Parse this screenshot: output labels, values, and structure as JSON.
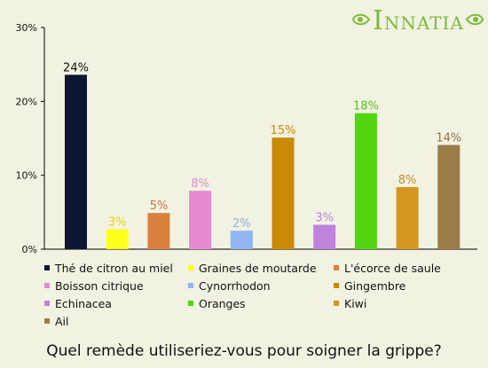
{
  "logo": {
    "text": "INNATIA",
    "color": "#7dbb3a"
  },
  "caption": "Quel remède utiliseriez-vous pour soigner la grippe?",
  "chart_data": {
    "type": "bar",
    "title": "Quel remède utiliseriez-vous pour soigner la grippe?",
    "ylim": [
      0,
      30
    ],
    "yticks": [
      0,
      10,
      20,
      30
    ],
    "ytick_labels": [
      "0%",
      "10%",
      "20%",
      "30%"
    ],
    "grid": false,
    "legend_position": "bottom",
    "categories": [
      "Thé de citron au miel",
      "Graines de moutarde",
      "L'écorce de saule",
      "Boisson citrique",
      "Cynorrhodon",
      "Gingembre",
      "Echinacea",
      "Oranges",
      "Kiwi",
      "Ail"
    ],
    "values": [
      24,
      3,
      5,
      8,
      2,
      15,
      3,
      18,
      8,
      14
    ],
    "plotted_values": [
      23.6,
      2.7,
      4.9,
      7.9,
      2.5,
      15.1,
      3.3,
      18.4,
      8.4,
      14.1
    ],
    "value_labels": [
      "24%",
      "3%",
      "5%",
      "8%",
      "2%",
      "15%",
      "3%",
      "18%",
      "8%",
      "14%"
    ],
    "colors": [
      "#0c1633",
      "#ffff1a",
      "#d8803c",
      "#e58ad1",
      "#8fb5f2",
      "#c98a05",
      "#bd83dd",
      "#52d60f",
      "#d4961e",
      "#9c7c46"
    ],
    "label_colors": [
      "#111111",
      "#e8d60a",
      "#cc7a3a",
      "#e28ad0",
      "#89aee8",
      "#c98a05",
      "#b783d8",
      "#52c418",
      "#c88c2a",
      "#8b7348"
    ]
  }
}
